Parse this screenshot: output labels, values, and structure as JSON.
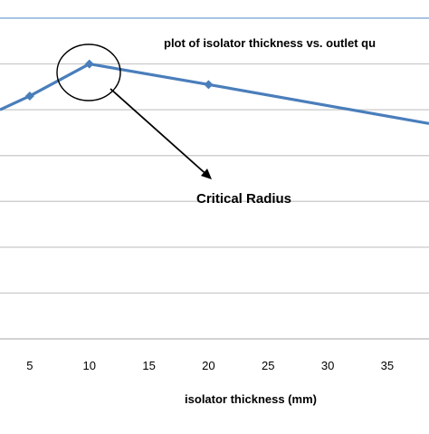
{
  "chart_data": {
    "type": "line",
    "title": "plot of isolator thickness vs. outlet qu",
    "xlabel": "isolator thickness (mm)",
    "ylabel": "",
    "x_ticks": [
      "5",
      "10",
      "15",
      "20",
      "25",
      "30",
      "35"
    ],
    "xlim": [
      2.5,
      38.5
    ],
    "ylim": [
      0,
      7
    ],
    "grid": true,
    "series": [
      {
        "x": [
          2.5,
          5,
          10,
          20,
          38.5
        ],
        "y": [
          5,
          5.3,
          6,
          5.55,
          4.7
        ]
      }
    ],
    "annotation": {
      "text": "Critical Radius",
      "target_x": 10,
      "target_y": 6
    },
    "colors": {
      "series": "#4a7ebb",
      "grid": "#c8c8c8",
      "top_frame": "#a9c4e4",
      "text": "#000000"
    }
  }
}
